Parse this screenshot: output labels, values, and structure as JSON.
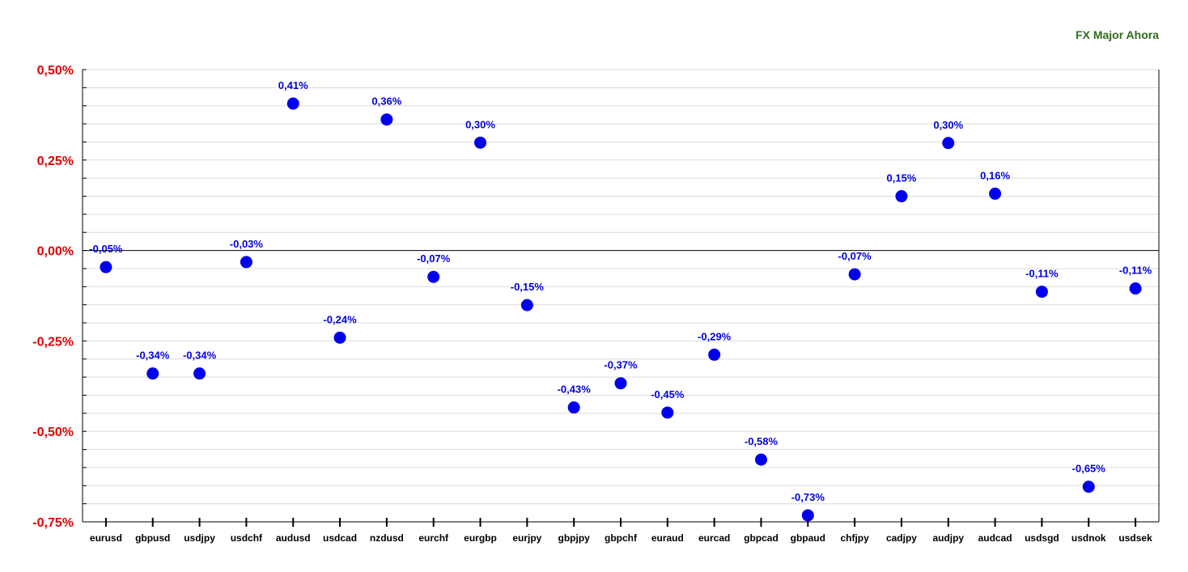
{
  "chart_data": {
    "type": "scatter",
    "legend": "FX Major Ahora",
    "legend_position": "top-right",
    "categories": [
      "eurusd",
      "gbpusd",
      "usdjpy",
      "usdchf",
      "audusd",
      "usdcad",
      "nzdusd",
      "eurchf",
      "eurgbp",
      "eurjpy",
      "gbpjpy",
      "gbpchf",
      "euraud",
      "eurcad",
      "gbpcad",
      "gbpaud",
      "chfjpy",
      "cadjpy",
      "audjpy",
      "audcad",
      "usdsgd",
      "usdnok",
      "usdsek"
    ],
    "values": [
      -0.046,
      -0.34,
      -0.34,
      -0.032,
      0.406,
      -0.241,
      0.362,
      -0.073,
      0.298,
      -0.151,
      -0.434,
      -0.367,
      -0.448,
      -0.288,
      -0.578,
      -0.732,
      -0.066,
      0.15,
      0.297,
      0.157,
      -0.114,
      -0.653,
      -0.105
    ],
    "labels": [
      "-0,05%",
      "-0,34%",
      "-0,34%",
      "-0,03%",
      "0,41%",
      "-0,24%",
      "0,36%",
      "-0,07%",
      "0,30%",
      "-0,15%",
      "-0,43%",
      "-0,37%",
      "-0,45%",
      "-0,29%",
      "-0,58%",
      "-0,73%",
      "-0,07%",
      "0,15%",
      "0,30%",
      "0,16%",
      "-0,11%",
      "-0,65%",
      "-0,11%"
    ],
    "yticks": [
      0.5,
      0.25,
      0,
      -0.25,
      -0.5,
      -0.75
    ],
    "ytick_labels": [
      "0,50%",
      "0,25%",
      "0,00%",
      "-0,25%",
      "-0,50%",
      "-0,75%"
    ],
    "ylim": [
      -0.75,
      0.5
    ],
    "grid": true,
    "marker_color": "#0000ee",
    "label_color": "#0000e0",
    "ytick_color": "#e00000",
    "legend_color": "#2e6b1a"
  }
}
